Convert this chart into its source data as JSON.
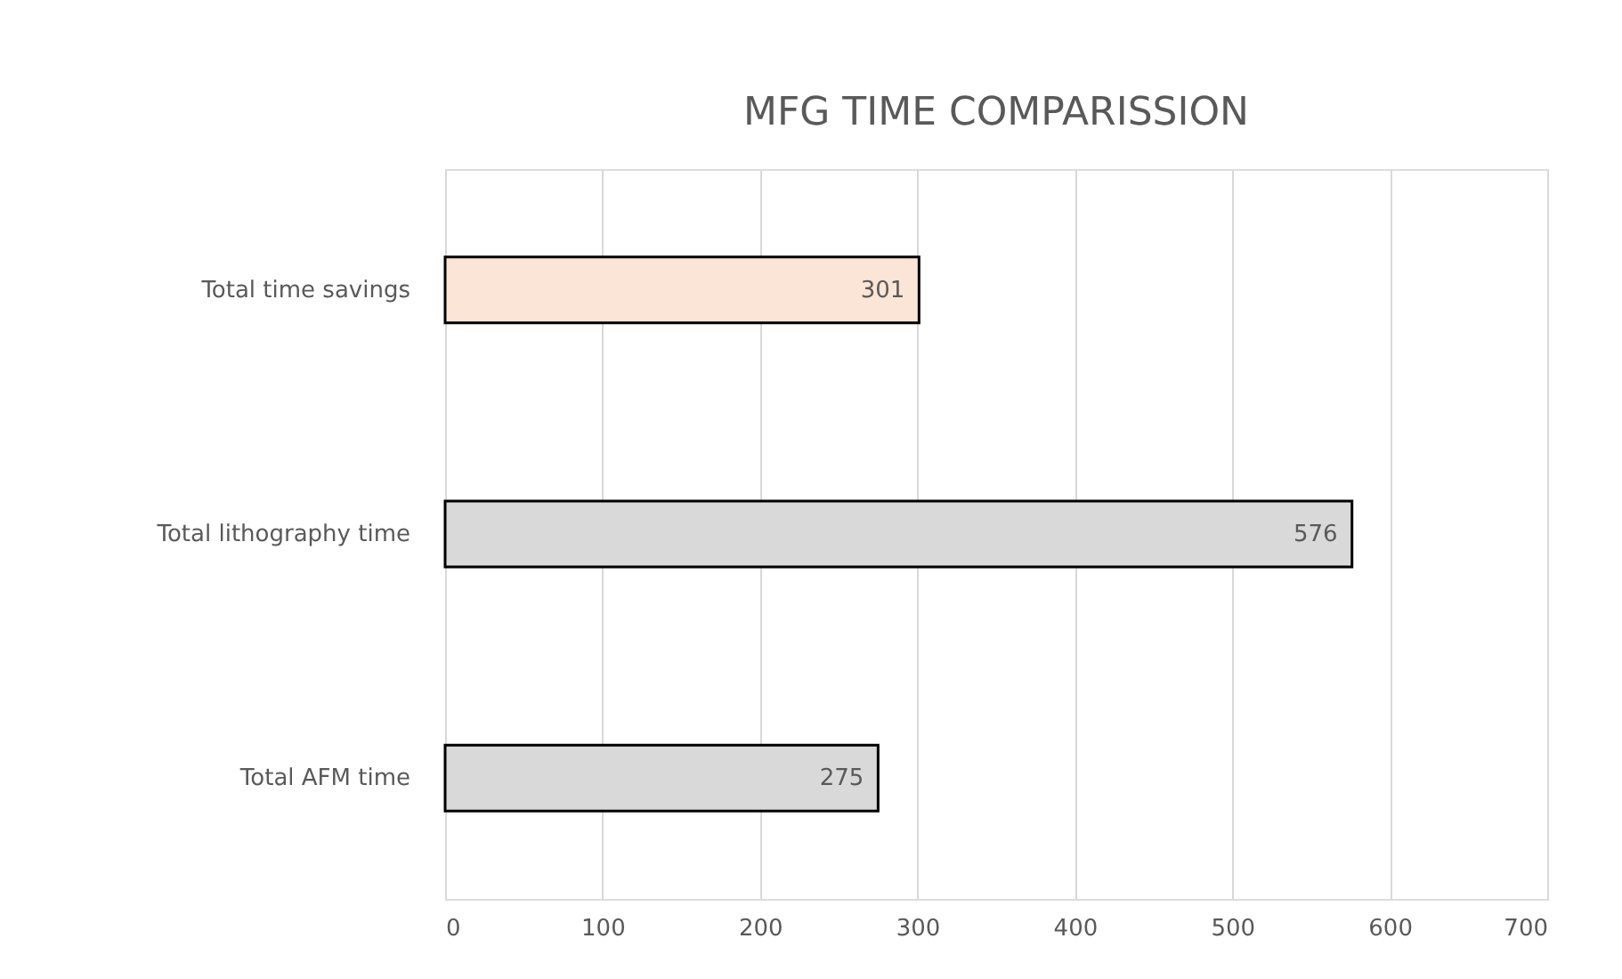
{
  "chart_data": {
    "type": "bar",
    "orientation": "horizontal",
    "title": "MFG TIME COMPARISSION",
    "categories": [
      "Total time savings",
      "Total lithography time",
      "Total AFM time"
    ],
    "values": [
      301,
      576,
      275
    ],
    "colors": [
      "#fbe5d6",
      "#d9d9d9",
      "#d9d9d9"
    ],
    "xlim": [
      0,
      700
    ],
    "xticks": [
      0,
      100,
      200,
      300,
      400,
      500,
      600,
      700
    ],
    "grid": "x",
    "data_labels": true
  }
}
